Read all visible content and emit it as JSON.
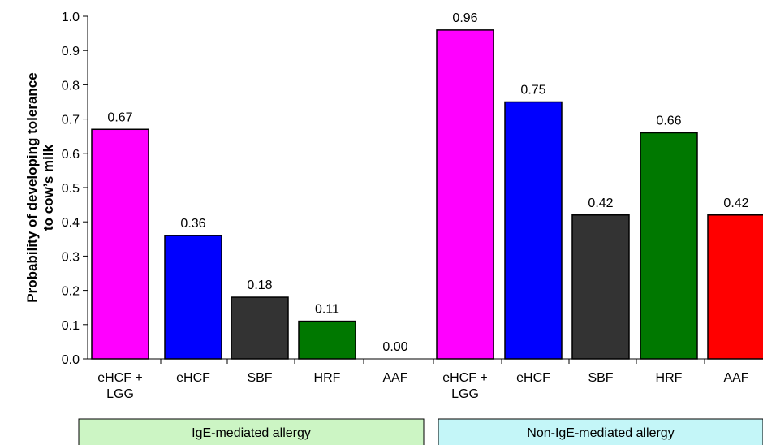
{
  "chart_data": {
    "type": "bar",
    "title": "",
    "ylabel_lines": [
      "Probability of developing tolerance",
      "to cow’s milk"
    ],
    "xlabel": "",
    "ylim": [
      0,
      1.0
    ],
    "yticks": [
      "0.0",
      "0.1",
      "0.2",
      "0.3",
      "0.4",
      "0.5",
      "0.6",
      "0.7",
      "0.8",
      "0.9",
      "1.0"
    ],
    "grid": false,
    "groups": [
      {
        "name": "IgE-mediated allergy",
        "color": "#ccf5c4",
        "categories": [
          [
            "eHCF +",
            "LGG"
          ],
          [
            "eHCF"
          ],
          [
            "SBF"
          ],
          [
            "HRF"
          ],
          [
            "AAF"
          ]
        ],
        "values": [
          0.67,
          0.36,
          0.18,
          0.11,
          0.0
        ],
        "value_labels": [
          "0.67",
          "0.36",
          "0.18",
          "0.11",
          "0.00"
        ],
        "bar_colors": [
          "#ff00ff",
          "#0000ff",
          "#333333",
          "#007800",
          "#ff0000"
        ]
      },
      {
        "name": "Non-IgE-mediated allergy",
        "color": "#c4f6f8",
        "categories": [
          [
            "eHCF +",
            "LGG"
          ],
          [
            "eHCF"
          ],
          [
            "SBF"
          ],
          [
            "HRF"
          ],
          [
            "AAF"
          ]
        ],
        "values": [
          0.96,
          0.75,
          0.42,
          0.66,
          0.42
        ],
        "value_labels": [
          "0.96",
          "0.75",
          "0.42",
          "0.66",
          "0.42"
        ],
        "bar_colors": [
          "#ff00ff",
          "#0000ff",
          "#333333",
          "#007800",
          "#ff0000"
        ]
      }
    ]
  }
}
